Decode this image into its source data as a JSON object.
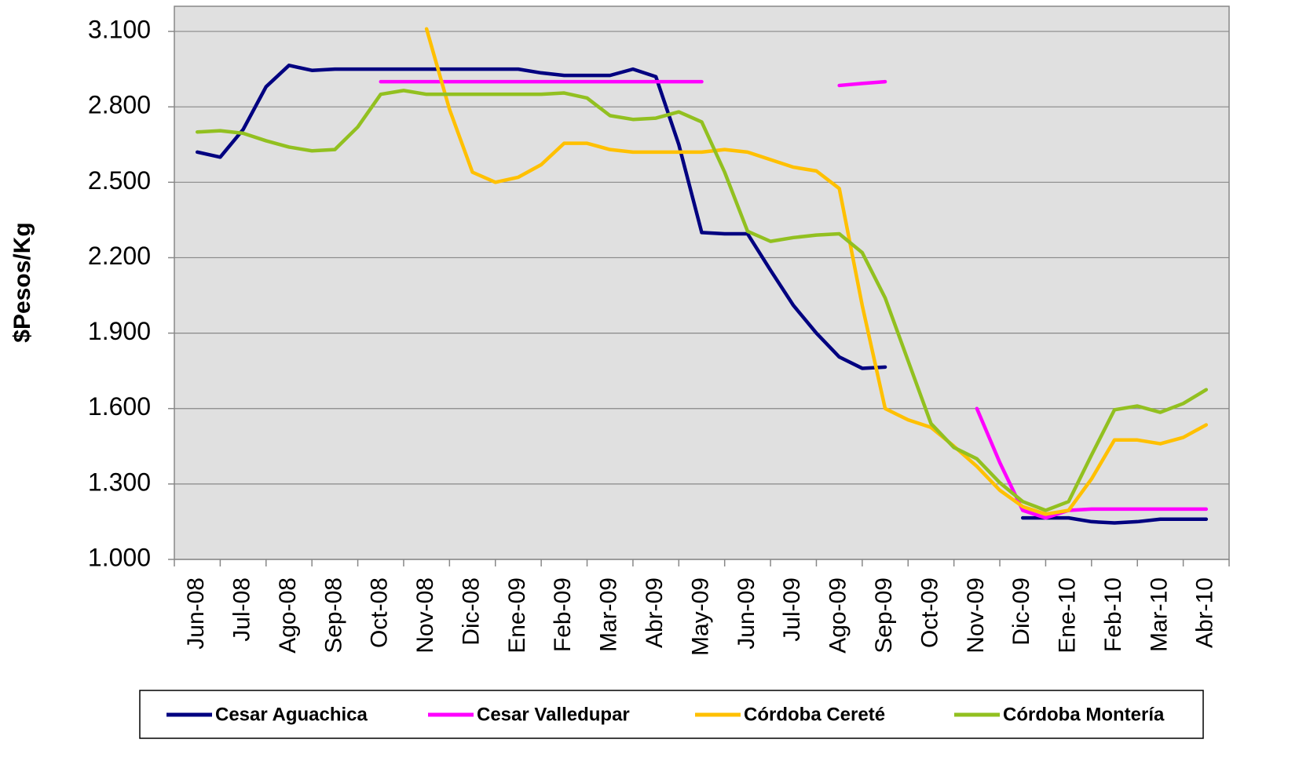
{
  "chart_data": {
    "type": "line",
    "y_label": "$Pesos/Kg",
    "categories": [
      "Jun-08",
      null,
      "Jul-08",
      null,
      "Ago-08",
      null,
      "Sep-08",
      null,
      "Oct-08",
      null,
      "Nov-08",
      null,
      "Dic-08",
      null,
      "Ene-09",
      null,
      "Feb-09",
      null,
      "Mar-09",
      null,
      "Abr-09",
      null,
      "May-09",
      null,
      "Jun-09",
      null,
      "Jul-09",
      null,
      "Ago-09",
      null,
      "Sep-09",
      null,
      "Oct-09",
      null,
      "Nov-09",
      null,
      "Dic-09",
      null,
      "Ene-10",
      null,
      "Feb-10",
      null,
      "Mar-10",
      null,
      "Abr-10"
    ],
    "ylim": [
      1000,
      3200
    ],
    "yticks": [
      {
        "value": 1000,
        "label": "1.000"
      },
      {
        "value": 1300,
        "label": "1.300"
      },
      {
        "value": 1600,
        "label": "1.600"
      },
      {
        "value": 1900,
        "label": "1.900"
      },
      {
        "value": 2200,
        "label": "2.200"
      },
      {
        "value": 2500,
        "label": "2.500"
      },
      {
        "value": 2800,
        "label": "2.800"
      },
      {
        "value": 3100,
        "label": "3.100"
      }
    ],
    "grid": true,
    "legend": "bottom",
    "series": [
      {
        "name": "Cesar Aguachica",
        "color": "#000080",
        "values": [
          2620,
          2600,
          2710,
          2880,
          2965,
          2945,
          2950,
          2950,
          2950,
          2950,
          2950,
          2950,
          2950,
          2950,
          2950,
          2935,
          2925,
          2925,
          2925,
          2950,
          2920,
          2650,
          2300,
          2295,
          2295,
          2150,
          2010,
          1900,
          1805,
          1760,
          1765,
          null,
          null,
          null,
          null,
          null,
          1165,
          1165,
          1165,
          1150,
          1145,
          1150,
          1160,
          1160,
          1160
        ]
      },
      {
        "name": "Cesar Valledupar",
        "color": "#ff00ff",
        "values": [
          null,
          null,
          null,
          null,
          null,
          null,
          null,
          null,
          2900,
          2900,
          2900,
          2900,
          2900,
          2900,
          2900,
          2900,
          2900,
          2900,
          2900,
          2900,
          2900,
          2900,
          2900,
          null,
          null,
          null,
          null,
          null,
          2885,
          2893,
          2900,
          null,
          null,
          null,
          1600,
          1385,
          1195,
          1165,
          1195,
          1200,
          1200,
          1200,
          1200,
          1200,
          1200
        ]
      },
      {
        "name": "Córdoba Cereté",
        "color": "#ffc000",
        "values": [
          null,
          null,
          null,
          null,
          null,
          null,
          null,
          null,
          null,
          null,
          3110,
          2790,
          2540,
          2500,
          2520,
          2570,
          2655,
          2655,
          2630,
          2620,
          2620,
          2620,
          2620,
          2630,
          2620,
          2590,
          2560,
          2545,
          2475,
          2010,
          1600,
          1555,
          1525,
          1450,
          1370,
          1275,
          1210,
          1180,
          1195,
          1320,
          1475,
          1475,
          1460,
          1485,
          1535
        ]
      },
      {
        "name": "Córdoba Montería",
        "color": "#92c020",
        "values": [
          2700,
          2705,
          2695,
          2665,
          2640,
          2625,
          2630,
          2720,
          2850,
          2865,
          2850,
          2850,
          2850,
          2850,
          2850,
          2850,
          2855,
          2835,
          2765,
          2750,
          2755,
          2780,
          2740,
          2540,
          2305,
          2265,
          2280,
          2290,
          2295,
          2220,
          2040,
          1790,
          1540,
          1445,
          1400,
          1305,
          1230,
          1195,
          1230,
          1415,
          1595,
          1610,
          1585,
          1620,
          1675
        ]
      }
    ]
  }
}
